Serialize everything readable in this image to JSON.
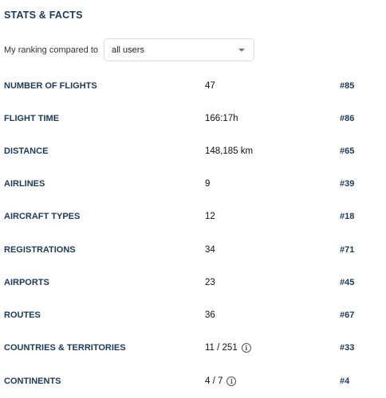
{
  "header": {
    "title": "STATS & FACTS"
  },
  "ranking": {
    "label": "My ranking compared to",
    "selected": "all users"
  },
  "stats": [
    {
      "label": "NUMBER OF FLIGHTS",
      "value": "47",
      "rank": "#85"
    },
    {
      "label": "FLIGHT TIME",
      "value": "166:17h",
      "rank": "#86"
    },
    {
      "label": "DISTANCE",
      "value": "148,185 km",
      "rank": "#65"
    },
    {
      "label": "AIRLINES",
      "value": "9",
      "rank": "#39"
    },
    {
      "label": "AIRCRAFT TYPES",
      "value": "12",
      "rank": "#18"
    },
    {
      "label": "REGISTRATIONS",
      "value": "34",
      "rank": "#71"
    },
    {
      "label": "AIRPORTS",
      "value": "23",
      "rank": "#45"
    },
    {
      "label": "ROUTES",
      "value": "36",
      "rank": "#67"
    },
    {
      "label": "COUNTRIES & TERRITORIES",
      "value": "11 / 251",
      "rank": "#33",
      "info": true
    },
    {
      "label": "CONTINENTS",
      "value": "4 / 7",
      "rank": "#4",
      "info": true
    }
  ],
  "icons": {
    "info": "info-icon",
    "dropdown": "chevron-down-icon"
  },
  "info_glyph": "i"
}
